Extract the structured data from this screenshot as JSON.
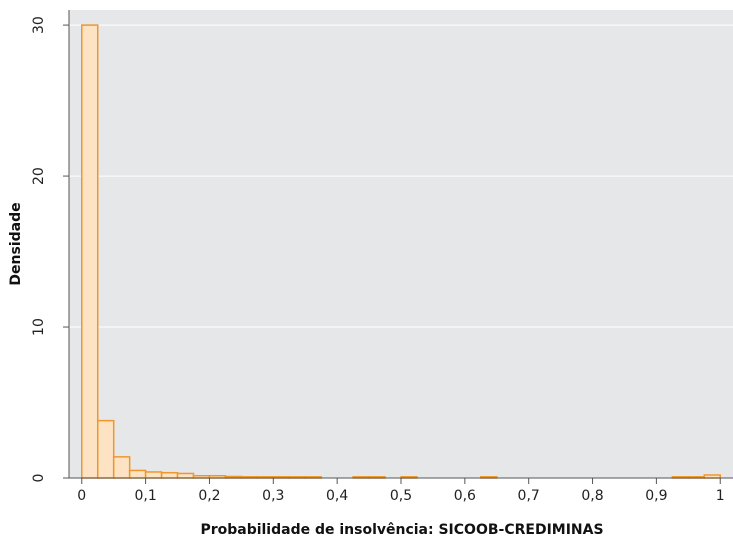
{
  "colors": {
    "plot_background": "#e6e7e8",
    "grid": "#ffffff",
    "bar_fill": "#fde3c4",
    "bar_edge": "#f0962d",
    "axis": "#555555"
  },
  "chart_data": {
    "type": "bar",
    "subtype": "histogram",
    "xlabel": "Probabilidade de insolvência: SICOOB-CREDIMINAS",
    "ylabel": "Densidade",
    "xlim": [
      -0.02,
      1.02
    ],
    "ylim": [
      0,
      31
    ],
    "grid": "horizontal",
    "bin_width": 0.025,
    "bins": [
      {
        "x0": 0.0,
        "x1": 0.025,
        "value": 30.0
      },
      {
        "x0": 0.025,
        "x1": 0.05,
        "value": 3.8
      },
      {
        "x0": 0.05,
        "x1": 0.075,
        "value": 1.4
      },
      {
        "x0": 0.075,
        "x1": 0.1,
        "value": 0.5
      },
      {
        "x0": 0.1,
        "x1": 0.125,
        "value": 0.4
      },
      {
        "x0": 0.125,
        "x1": 0.15,
        "value": 0.35
      },
      {
        "x0": 0.15,
        "x1": 0.175,
        "value": 0.3
      },
      {
        "x0": 0.175,
        "x1": 0.2,
        "value": 0.15
      },
      {
        "x0": 0.2,
        "x1": 0.225,
        "value": 0.15
      },
      {
        "x0": 0.225,
        "x1": 0.25,
        "value": 0.1
      },
      {
        "x0": 0.25,
        "x1": 0.275,
        "value": 0.08
      },
      {
        "x0": 0.275,
        "x1": 0.3,
        "value": 0.08
      },
      {
        "x0": 0.3,
        "x1": 0.325,
        "value": 0.08
      },
      {
        "x0": 0.325,
        "x1": 0.35,
        "value": 0.06
      },
      {
        "x0": 0.35,
        "x1": 0.375,
        "value": 0.04
      },
      {
        "x0": 0.425,
        "x1": 0.45,
        "value": 0.05
      },
      {
        "x0": 0.45,
        "x1": 0.475,
        "value": 0.05
      },
      {
        "x0": 0.5,
        "x1": 0.525,
        "value": 0.05
      },
      {
        "x0": 0.625,
        "x1": 0.65,
        "value": 0.05
      },
      {
        "x0": 0.925,
        "x1": 0.95,
        "value": 0.05
      },
      {
        "x0": 0.95,
        "x1": 0.975,
        "value": 0.05
      },
      {
        "x0": 0.975,
        "x1": 1.0,
        "value": 0.2
      }
    ],
    "x_ticks": [
      {
        "value": 0.0,
        "label": "0"
      },
      {
        "value": 0.1,
        "label": "0,1"
      },
      {
        "value": 0.2,
        "label": "0,2"
      },
      {
        "value": 0.3,
        "label": "0,3"
      },
      {
        "value": 0.4,
        "label": "0,4"
      },
      {
        "value": 0.5,
        "label": "0,5"
      },
      {
        "value": 0.6,
        "label": "0,6"
      },
      {
        "value": 0.7,
        "label": "0,7"
      },
      {
        "value": 0.8,
        "label": "0,8"
      },
      {
        "value": 0.9,
        "label": "0,9"
      },
      {
        "value": 1.0,
        "label": "1"
      }
    ],
    "y_ticks": [
      {
        "value": 0,
        "label": "0"
      },
      {
        "value": 10,
        "label": "10"
      },
      {
        "value": 20,
        "label": "20"
      },
      {
        "value": 30,
        "label": "30"
      }
    ]
  }
}
